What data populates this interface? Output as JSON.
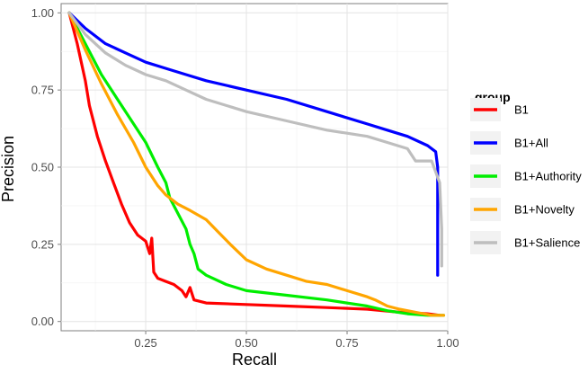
{
  "chart_data": {
    "type": "line",
    "xlabel": "Recall",
    "ylabel": "Precision",
    "xlim": [
      0.04,
      1.0
    ],
    "ylim": [
      -0.03,
      1.03
    ],
    "x_ticks": [
      0.25,
      0.5,
      0.75,
      1.0
    ],
    "x_tick_labels": [
      "0.25",
      "0.50",
      "0.75",
      "1.00"
    ],
    "y_ticks": [
      0.0,
      0.25,
      0.5,
      0.75,
      1.0
    ],
    "y_tick_labels": [
      "0.00",
      "0.25",
      "0.50",
      "0.75",
      "1.00"
    ],
    "grid": true,
    "legend": {
      "title": "group",
      "position": "right"
    },
    "series": [
      {
        "name": "B1",
        "color": "#ff0000",
        "points": [
          [
            0.06,
            1.0
          ],
          [
            0.08,
            0.9
          ],
          [
            0.1,
            0.78
          ],
          [
            0.11,
            0.7
          ],
          [
            0.13,
            0.6
          ],
          [
            0.15,
            0.52
          ],
          [
            0.17,
            0.45
          ],
          [
            0.19,
            0.38
          ],
          [
            0.21,
            0.32
          ],
          [
            0.23,
            0.28
          ],
          [
            0.25,
            0.26
          ],
          [
            0.26,
            0.22
          ],
          [
            0.265,
            0.27
          ],
          [
            0.27,
            0.16
          ],
          [
            0.28,
            0.14
          ],
          [
            0.3,
            0.13
          ],
          [
            0.32,
            0.12
          ],
          [
            0.34,
            0.1
          ],
          [
            0.35,
            0.08
          ],
          [
            0.36,
            0.11
          ],
          [
            0.37,
            0.07
          ],
          [
            0.4,
            0.06
          ],
          [
            0.5,
            0.055
          ],
          [
            0.6,
            0.05
          ],
          [
            0.7,
            0.045
          ],
          [
            0.8,
            0.04
          ],
          [
            0.88,
            0.03
          ],
          [
            0.95,
            0.025
          ],
          [
            0.98,
            0.02
          ]
        ]
      },
      {
        "name": "B1+All",
        "color": "#0000ff",
        "points": [
          [
            0.06,
            1.0
          ],
          [
            0.1,
            0.95
          ],
          [
            0.15,
            0.9
          ],
          [
            0.2,
            0.87
          ],
          [
            0.25,
            0.84
          ],
          [
            0.3,
            0.82
          ],
          [
            0.35,
            0.8
          ],
          [
            0.4,
            0.78
          ],
          [
            0.5,
            0.75
          ],
          [
            0.6,
            0.72
          ],
          [
            0.7,
            0.68
          ],
          [
            0.8,
            0.64
          ],
          [
            0.85,
            0.62
          ],
          [
            0.9,
            0.6
          ],
          [
            0.95,
            0.57
          ],
          [
            0.97,
            0.55
          ],
          [
            0.975,
            0.5
          ],
          [
            0.975,
            0.15
          ]
        ]
      },
      {
        "name": "B1+Authority",
        "color": "#00ee00",
        "points": [
          [
            0.06,
            1.0
          ],
          [
            0.1,
            0.9
          ],
          [
            0.14,
            0.8
          ],
          [
            0.18,
            0.72
          ],
          [
            0.22,
            0.64
          ],
          [
            0.25,
            0.58
          ],
          [
            0.28,
            0.5
          ],
          [
            0.3,
            0.45
          ],
          [
            0.31,
            0.4
          ],
          [
            0.33,
            0.35
          ],
          [
            0.35,
            0.3
          ],
          [
            0.36,
            0.25
          ],
          [
            0.37,
            0.22
          ],
          [
            0.38,
            0.17
          ],
          [
            0.4,
            0.15
          ],
          [
            0.45,
            0.12
          ],
          [
            0.5,
            0.1
          ],
          [
            0.6,
            0.085
          ],
          [
            0.7,
            0.07
          ],
          [
            0.8,
            0.05
          ],
          [
            0.85,
            0.035
          ],
          [
            0.9,
            0.025
          ],
          [
            0.95,
            0.02
          ],
          [
            0.99,
            0.02
          ]
        ]
      },
      {
        "name": "B1+Novelty",
        "color": "#ffa500",
        "points": [
          [
            0.06,
            1.0
          ],
          [
            0.1,
            0.88
          ],
          [
            0.14,
            0.77
          ],
          [
            0.18,
            0.67
          ],
          [
            0.22,
            0.58
          ],
          [
            0.25,
            0.5
          ],
          [
            0.28,
            0.44
          ],
          [
            0.3,
            0.41
          ],
          [
            0.33,
            0.38
          ],
          [
            0.36,
            0.36
          ],
          [
            0.4,
            0.33
          ],
          [
            0.43,
            0.29
          ],
          [
            0.46,
            0.25
          ],
          [
            0.5,
            0.2
          ],
          [
            0.55,
            0.17
          ],
          [
            0.6,
            0.15
          ],
          [
            0.65,
            0.13
          ],
          [
            0.7,
            0.12
          ],
          [
            0.75,
            0.1
          ],
          [
            0.8,
            0.08
          ],
          [
            0.82,
            0.07
          ],
          [
            0.85,
            0.05
          ],
          [
            0.88,
            0.04
          ],
          [
            0.92,
            0.03
          ],
          [
            0.96,
            0.02
          ],
          [
            0.99,
            0.02
          ]
        ]
      },
      {
        "name": "B1+Salience",
        "color": "#bebebe",
        "points": [
          [
            0.06,
            1.0
          ],
          [
            0.1,
            0.93
          ],
          [
            0.15,
            0.87
          ],
          [
            0.2,
            0.83
          ],
          [
            0.25,
            0.8
          ],
          [
            0.3,
            0.78
          ],
          [
            0.35,
            0.75
          ],
          [
            0.4,
            0.72
          ],
          [
            0.5,
            0.68
          ],
          [
            0.6,
            0.65
          ],
          [
            0.7,
            0.62
          ],
          [
            0.75,
            0.61
          ],
          [
            0.8,
            0.6
          ],
          [
            0.85,
            0.58
          ],
          [
            0.9,
            0.56
          ],
          [
            0.92,
            0.52
          ],
          [
            0.96,
            0.52
          ],
          [
            0.98,
            0.45
          ],
          [
            0.985,
            0.3
          ],
          [
            0.985,
            0.18
          ]
        ]
      }
    ]
  }
}
